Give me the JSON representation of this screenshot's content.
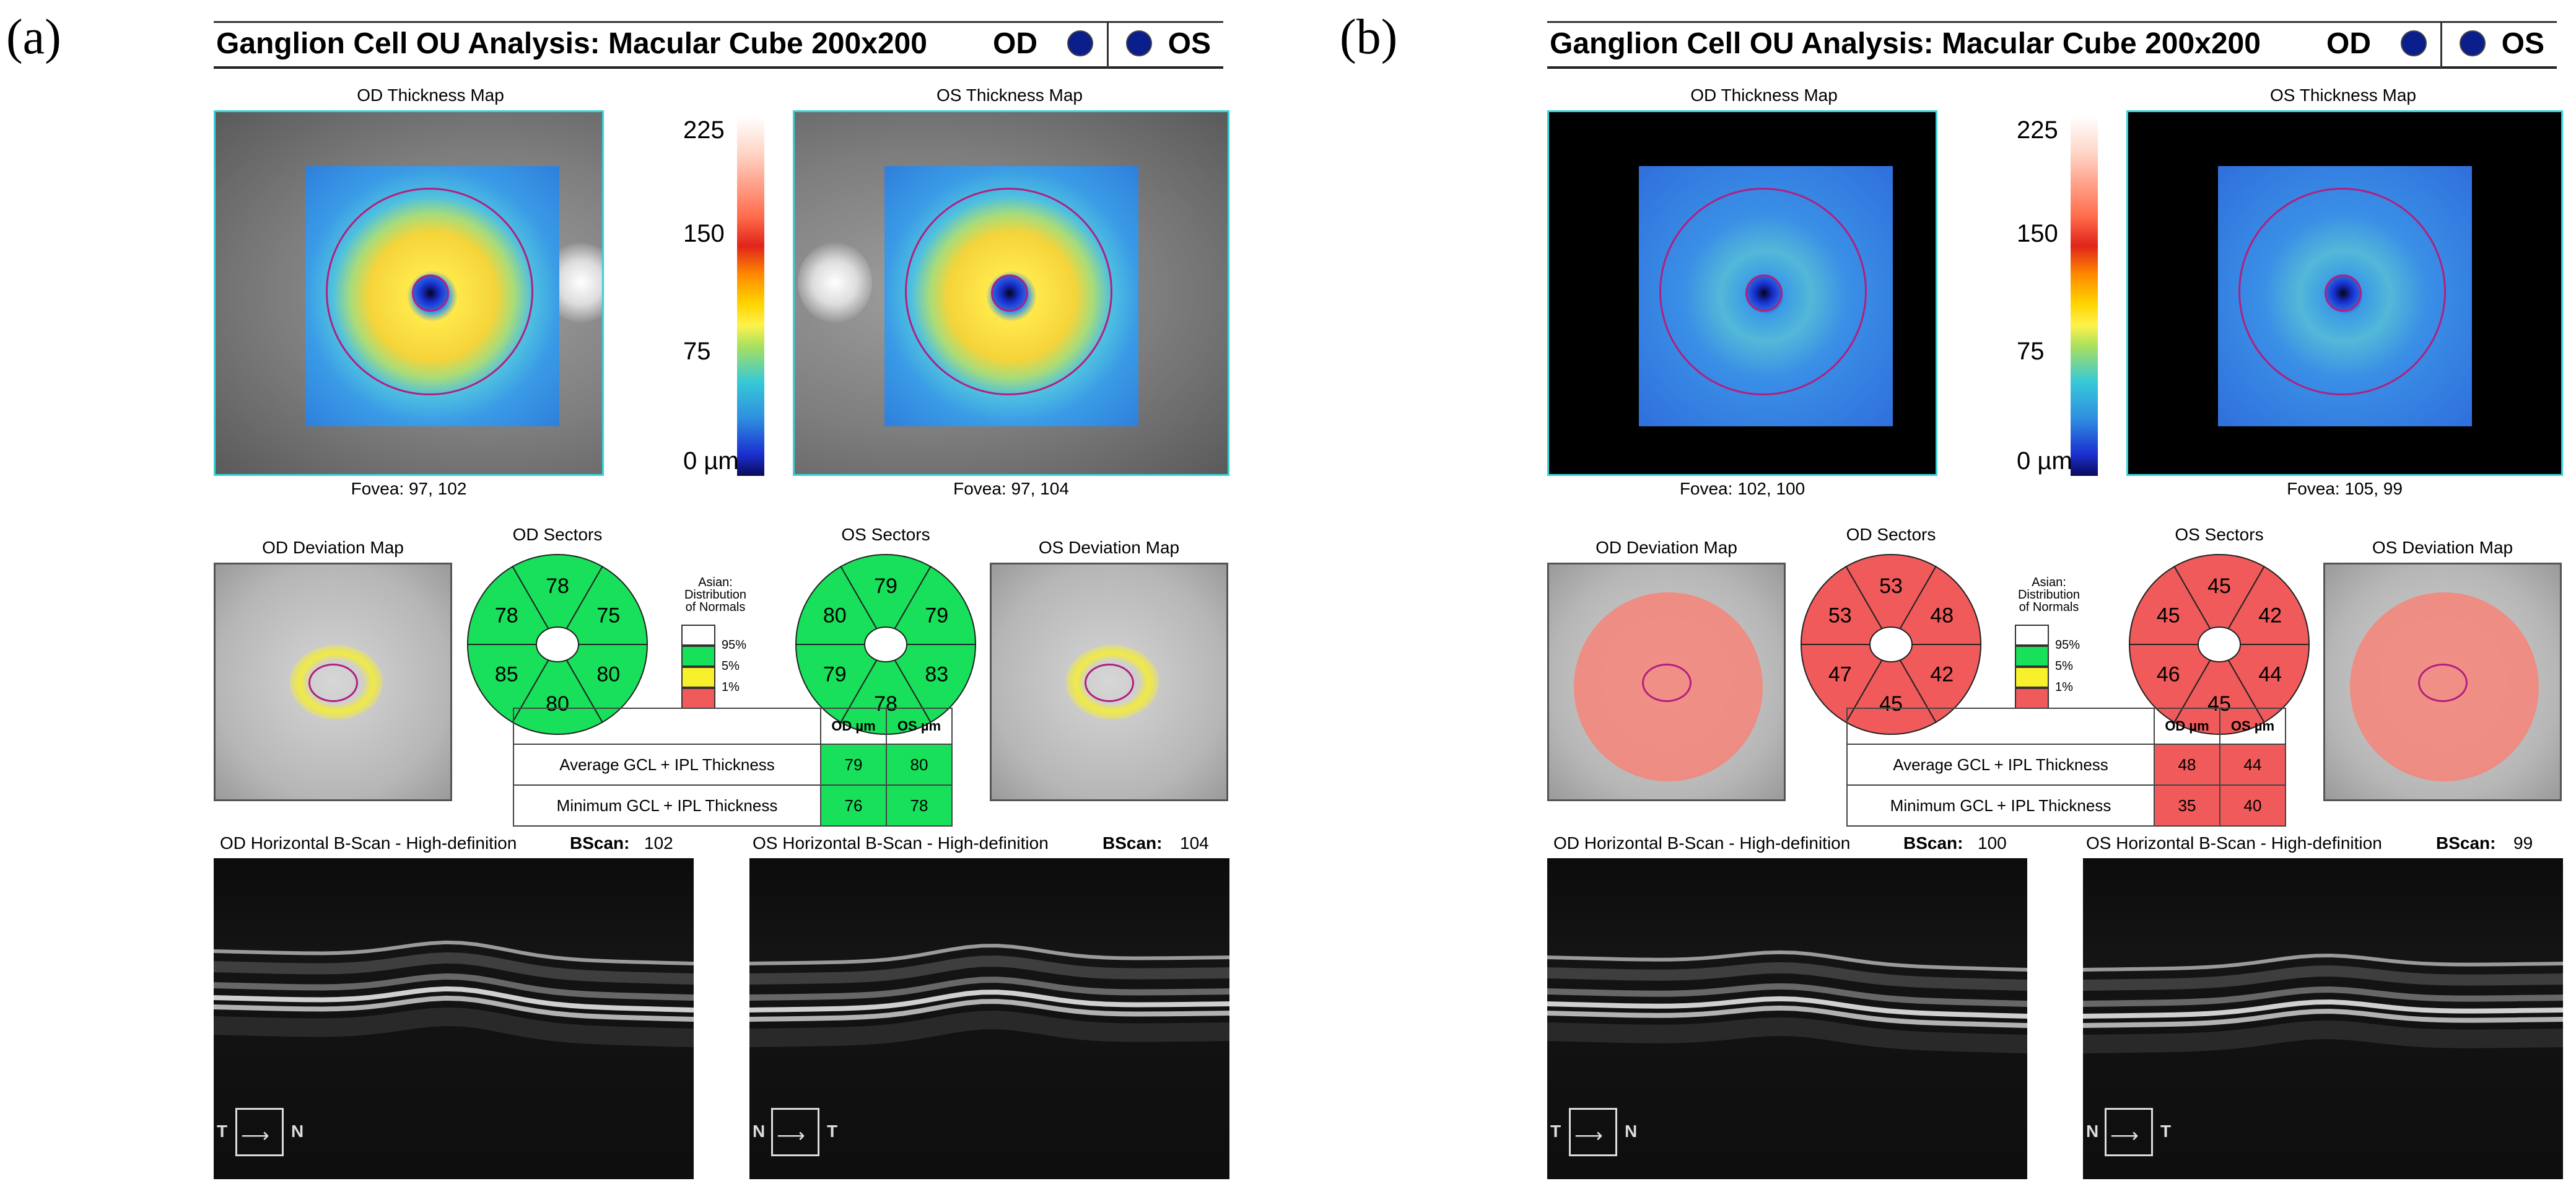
{
  "panels": [
    {
      "label": "(a)",
      "header": {
        "title": "Ganglion Cell OU Analysis: Macular Cube 200x200",
        "od": "OD",
        "os": "OS"
      },
      "od_map_title": "OD Thickness Map",
      "os_map_title": "OS Thickness Map",
      "od_fovea": "Fovea: 97, 102",
      "os_fovea": "Fovea: 97, 104",
      "scale": {
        "top": "225",
        "mid1": "150",
        "mid2": "75",
        "bottom": "0 µm"
      },
      "od_dev_title": "OD Deviation Map",
      "od_sectors_title": "OD Sectors",
      "os_sectors_title": "OS Sectors",
      "os_dev_title": "OS Deviation Map",
      "legend": {
        "title": "Asian: Distribution of Normals",
        "p95": "95%",
        "p5": "5%",
        "p1": "1%"
      },
      "od_sectors": {
        "top": "78",
        "top_right": "75",
        "bottom_right": "80",
        "bottom": "80",
        "bottom_left": "85",
        "top_left": "78"
      },
      "os_sectors": {
        "top": "79",
        "top_right": "79",
        "bottom_right": "83",
        "bottom": "78",
        "bottom_left": "79",
        "top_left": "80"
      },
      "table": {
        "col_od": "OD µm",
        "col_os": "OS µm",
        "rows": [
          {
            "label": "Average GCL + IPL Thickness",
            "od": "79",
            "os": "80"
          },
          {
            "label": "Minimum GCL + IPL Thickness",
            "od": "76",
            "os": "78"
          }
        ]
      },
      "od_bscan_title": "OD Horizontal B-Scan - High-definition",
      "od_bscan_label": "BScan:",
      "od_bscan_value": "102",
      "os_bscan_title": "OS Horizontal B-Scan - High-definition",
      "os_bscan_label": "BScan:",
      "os_bscan_value": "104",
      "od_compass": {
        "left": "T",
        "right": "N"
      },
      "os_compass": {
        "left": "N",
        "right": "T"
      }
    },
    {
      "label": "(b)",
      "header": {
        "title": "Ganglion Cell OU Analysis: Macular Cube 200x200",
        "od": "OD",
        "os": "OS"
      },
      "od_map_title": "OD Thickness Map",
      "os_map_title": "OS Thickness Map",
      "od_fovea": "Fovea: 102, 100",
      "os_fovea": "Fovea: 105, 99",
      "scale": {
        "top": "225",
        "mid1": "150",
        "mid2": "75",
        "bottom": "0 µm"
      },
      "od_dev_title": "OD Deviation Map",
      "od_sectors_title": "OD Sectors",
      "os_sectors_title": "OS Sectors",
      "os_dev_title": "OS Deviation Map",
      "legend": {
        "title": "Asian: Distribution of Normals",
        "p95": "95%",
        "p5": "5%",
        "p1": "1%"
      },
      "od_sectors": {
        "top": "53",
        "top_right": "48",
        "bottom_right": "42",
        "bottom": "45",
        "bottom_left": "47",
        "top_left": "53"
      },
      "os_sectors": {
        "top": "45",
        "top_right": "42",
        "bottom_right": "44",
        "bottom": "45",
        "bottom_left": "46",
        "top_left": "45"
      },
      "table": {
        "col_od": "OD µm",
        "col_os": "OS µm",
        "rows": [
          {
            "label": "Average GCL + IPL Thickness",
            "od": "48",
            "os": "44"
          },
          {
            "label": "Minimum GCL + IPL Thickness",
            "od": "35",
            "os": "40"
          }
        ]
      },
      "od_bscan_title": "OD Horizontal B-Scan - High-definition",
      "od_bscan_label": "BScan:",
      "od_bscan_value": "100",
      "os_bscan_title": "OS Horizontal B-Scan - High-definition",
      "os_bscan_label": "BScan:",
      "os_bscan_value": "99",
      "od_compass": {
        "left": "T",
        "right": "N"
      },
      "os_compass": {
        "left": "N",
        "right": "T"
      }
    }
  ],
  "colors": {
    "normal": "#18e05a",
    "borderline": "#f7f02a",
    "outside": "#f05a5a",
    "frame": "#34d3d8"
  }
}
